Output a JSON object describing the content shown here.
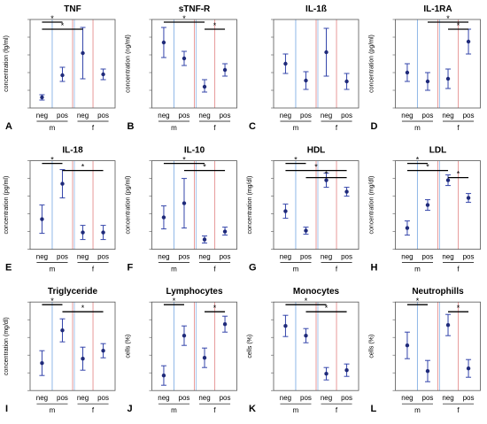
{
  "figure": {
    "group_labels": [
      "neg",
      "pos",
      "neg",
      "pos"
    ],
    "sex_labels": [
      "m",
      "f"
    ],
    "colors": {
      "marker": "#1f2a7a",
      "errorbar": "#3344aa",
      "blue_divider": "#8fb8e8",
      "red_divider": "#e89a9a",
      "significance": "#000000"
    }
  },
  "chart_data": [
    {
      "type": "scatter",
      "panel_letter": "A",
      "title": "TNF",
      "ylabel": "concentration (fg/ml)",
      "categories": [
        "neg m",
        "pos m",
        "neg f",
        "pos f"
      ],
      "values": [
        0.12,
        0.37,
        0.62,
        0.38
      ],
      "errors": [
        [
          0.09,
          0.15
        ],
        [
          0.3,
          0.46
        ],
        [
          0.33,
          0.91
        ],
        [
          0.32,
          0.44
        ]
      ],
      "ylim": [
        0,
        1
      ],
      "significance": [
        {
          "from": 0,
          "to": 1,
          "label": "*"
        },
        {
          "from": 0,
          "to": 2,
          "label": "*"
        }
      ]
    },
    {
      "type": "scatter",
      "panel_letter": "B",
      "title": "sTNF-R",
      "ylabel": "concentration (ng/ml)",
      "categories": [
        "neg m",
        "pos m",
        "neg f",
        "pos f"
      ],
      "values": [
        0.74,
        0.56,
        0.24,
        0.43
      ],
      "errors": [
        [
          0.57,
          0.91
        ],
        [
          0.48,
          0.64
        ],
        [
          0.18,
          0.32
        ],
        [
          0.36,
          0.5
        ]
      ],
      "ylim": [
        0,
        1
      ],
      "significance": [
        {
          "from": 0,
          "to": 2,
          "label": "*"
        },
        {
          "from": 2,
          "to": 3,
          "label": "*"
        }
      ]
    },
    {
      "type": "scatter",
      "panel_letter": "C",
      "title": "IL-1ß",
      "ylabel": "",
      "categories": [
        "neg m",
        "pos m",
        "neg f",
        "pos f"
      ],
      "values": [
        0.5,
        0.31,
        0.63,
        0.3
      ],
      "errors": [
        [
          0.39,
          0.61
        ],
        [
          0.21,
          0.41
        ],
        [
          0.36,
          0.9
        ],
        [
          0.21,
          0.39
        ]
      ],
      "ylim": [
        0,
        1
      ],
      "significance": []
    },
    {
      "type": "scatter",
      "panel_letter": "D",
      "title": "IL-1RA",
      "ylabel": "concentration (pg/ml)",
      "categories": [
        "neg m",
        "pos m",
        "neg f",
        "pos f"
      ],
      "values": [
        0.4,
        0.3,
        0.33,
        0.75
      ],
      "errors": [
        [
          0.3,
          0.5
        ],
        [
          0.2,
          0.4
        ],
        [
          0.22,
          0.44
        ],
        [
          0.61,
          0.89
        ]
      ],
      "ylim": [
        0,
        1
      ],
      "significance": [
        {
          "from": 1,
          "to": 3,
          "label": "*"
        },
        {
          "from": 2,
          "to": 3,
          "label": "*"
        }
      ]
    },
    {
      "type": "scatter",
      "panel_letter": "E",
      "title": "IL-18",
      "ylabel": "concentration (pg/ml)",
      "categories": [
        "neg m",
        "pos m",
        "neg f",
        "pos f"
      ],
      "values": [
        0.34,
        0.74,
        0.19,
        0.19
      ],
      "errors": [
        [
          0.18,
          0.5
        ],
        [
          0.58,
          0.9
        ],
        [
          0.11,
          0.27
        ],
        [
          0.11,
          0.27
        ]
      ],
      "ylim": [
        0,
        1
      ],
      "significance": [
        {
          "from": 0,
          "to": 1,
          "label": "*"
        },
        {
          "from": 1,
          "to": 3,
          "label": "*"
        }
      ]
    },
    {
      "type": "scatter",
      "panel_letter": "F",
      "title": "IL-10",
      "ylabel": "concentration (pg/ml)",
      "categories": [
        "neg m",
        "pos m",
        "neg f",
        "pos f"
      ],
      "values": [
        0.36,
        0.52,
        0.11,
        0.2
      ],
      "errors": [
        [
          0.23,
          0.49
        ],
        [
          0.24,
          0.8
        ],
        [
          0.07,
          0.15
        ],
        [
          0.16,
          0.25
        ]
      ],
      "ylim": [
        0,
        1
      ],
      "significance": [
        {
          "from": 0,
          "to": 2,
          "label": "*"
        },
        {
          "from": 1,
          "to": 3,
          "label": "*"
        }
      ]
    },
    {
      "type": "scatter",
      "panel_letter": "G",
      "title": "HDL",
      "ylabel": "concentration (mg/dl)",
      "categories": [
        "neg m",
        "pos m",
        "neg f",
        "pos f"
      ],
      "values": [
        0.43,
        0.21,
        0.78,
        0.65
      ],
      "errors": [
        [
          0.35,
          0.51
        ],
        [
          0.17,
          0.25
        ],
        [
          0.7,
          0.86
        ],
        [
          0.6,
          0.7
        ]
      ],
      "ylim": [
        0,
        1
      ],
      "significance": [
        {
          "from": 0,
          "to": 1,
          "label": "*"
        },
        {
          "from": 0,
          "to": 3,
          "label": "*"
        },
        {
          "from": 1,
          "to": 3,
          "label": "*"
        }
      ]
    },
    {
      "type": "scatter",
      "panel_letter": "H",
      "title": "LDL",
      "ylabel": "concentration (mg/dl)",
      "categories": [
        "neg m",
        "pos m",
        "neg f",
        "pos f"
      ],
      "values": [
        0.24,
        0.5,
        0.78,
        0.58
      ],
      "errors": [
        [
          0.16,
          0.32
        ],
        [
          0.44,
          0.56
        ],
        [
          0.72,
          0.84
        ],
        [
          0.53,
          0.63
        ]
      ],
      "ylim": [
        0,
        1
      ],
      "significance": [
        {
          "from": 0,
          "to": 1,
          "label": "*"
        },
        {
          "from": 0,
          "to": 2,
          "label": "*"
        },
        {
          "from": 2,
          "to": 3,
          "label": "*"
        }
      ]
    },
    {
      "type": "scatter",
      "panel_letter": "I",
      "title": "Triglyceride",
      "ylabel": "concentration (mg/dl)",
      "categories": [
        "neg m",
        "pos m",
        "neg f",
        "pos f"
      ],
      "values": [
        0.31,
        0.68,
        0.36,
        0.45
      ],
      "errors": [
        [
          0.17,
          0.45
        ],
        [
          0.55,
          0.81
        ],
        [
          0.23,
          0.49
        ],
        [
          0.37,
          0.53
        ]
      ],
      "ylim": [
        0,
        1
      ],
      "significance": [
        {
          "from": 0,
          "to": 1,
          "label": "*"
        },
        {
          "from": 1,
          "to": 3,
          "label": "*"
        }
      ]
    },
    {
      "type": "scatter",
      "panel_letter": "J",
      "title": "Lymphocytes",
      "ylabel": "cells (%)",
      "categories": [
        "neg m",
        "pos m",
        "neg f",
        "pos f"
      ],
      "values": [
        0.17,
        0.62,
        0.37,
        0.75
      ],
      "errors": [
        [
          0.06,
          0.28
        ],
        [
          0.51,
          0.73
        ],
        [
          0.26,
          0.48
        ],
        [
          0.66,
          0.84
        ]
      ],
      "ylim": [
        0,
        1
      ],
      "significance": [
        {
          "from": 0,
          "to": 1,
          "label": "*"
        },
        {
          "from": 2,
          "to": 3,
          "label": "*"
        }
      ]
    },
    {
      "type": "scatter",
      "panel_letter": "K",
      "title": "Monocytes",
      "ylabel": "cells (%)",
      "categories": [
        "neg m",
        "pos m",
        "neg f",
        "pos f"
      ],
      "values": [
        0.73,
        0.62,
        0.19,
        0.23
      ],
      "errors": [
        [
          0.61,
          0.85
        ],
        [
          0.54,
          0.7
        ],
        [
          0.12,
          0.26
        ],
        [
          0.16,
          0.3
        ]
      ],
      "ylim": [
        0,
        1
      ],
      "significance": [
        {
          "from": 0,
          "to": 2,
          "label": "*"
        },
        {
          "from": 1,
          "to": 3,
          "label": "*"
        }
      ]
    },
    {
      "type": "scatter",
      "panel_letter": "L",
      "title": "Neutrophills",
      "ylabel": "cells (%)",
      "categories": [
        "neg m",
        "pos m",
        "neg f",
        "pos f"
      ],
      "values": [
        0.51,
        0.22,
        0.74,
        0.25
      ],
      "errors": [
        [
          0.36,
          0.66
        ],
        [
          0.1,
          0.34
        ],
        [
          0.62,
          0.86
        ],
        [
          0.15,
          0.35
        ]
      ],
      "ylim": [
        0,
        1
      ],
      "significance": [
        {
          "from": 0,
          "to": 1,
          "label": "*"
        },
        {
          "from": 2,
          "to": 3,
          "label": "*"
        }
      ]
    }
  ]
}
